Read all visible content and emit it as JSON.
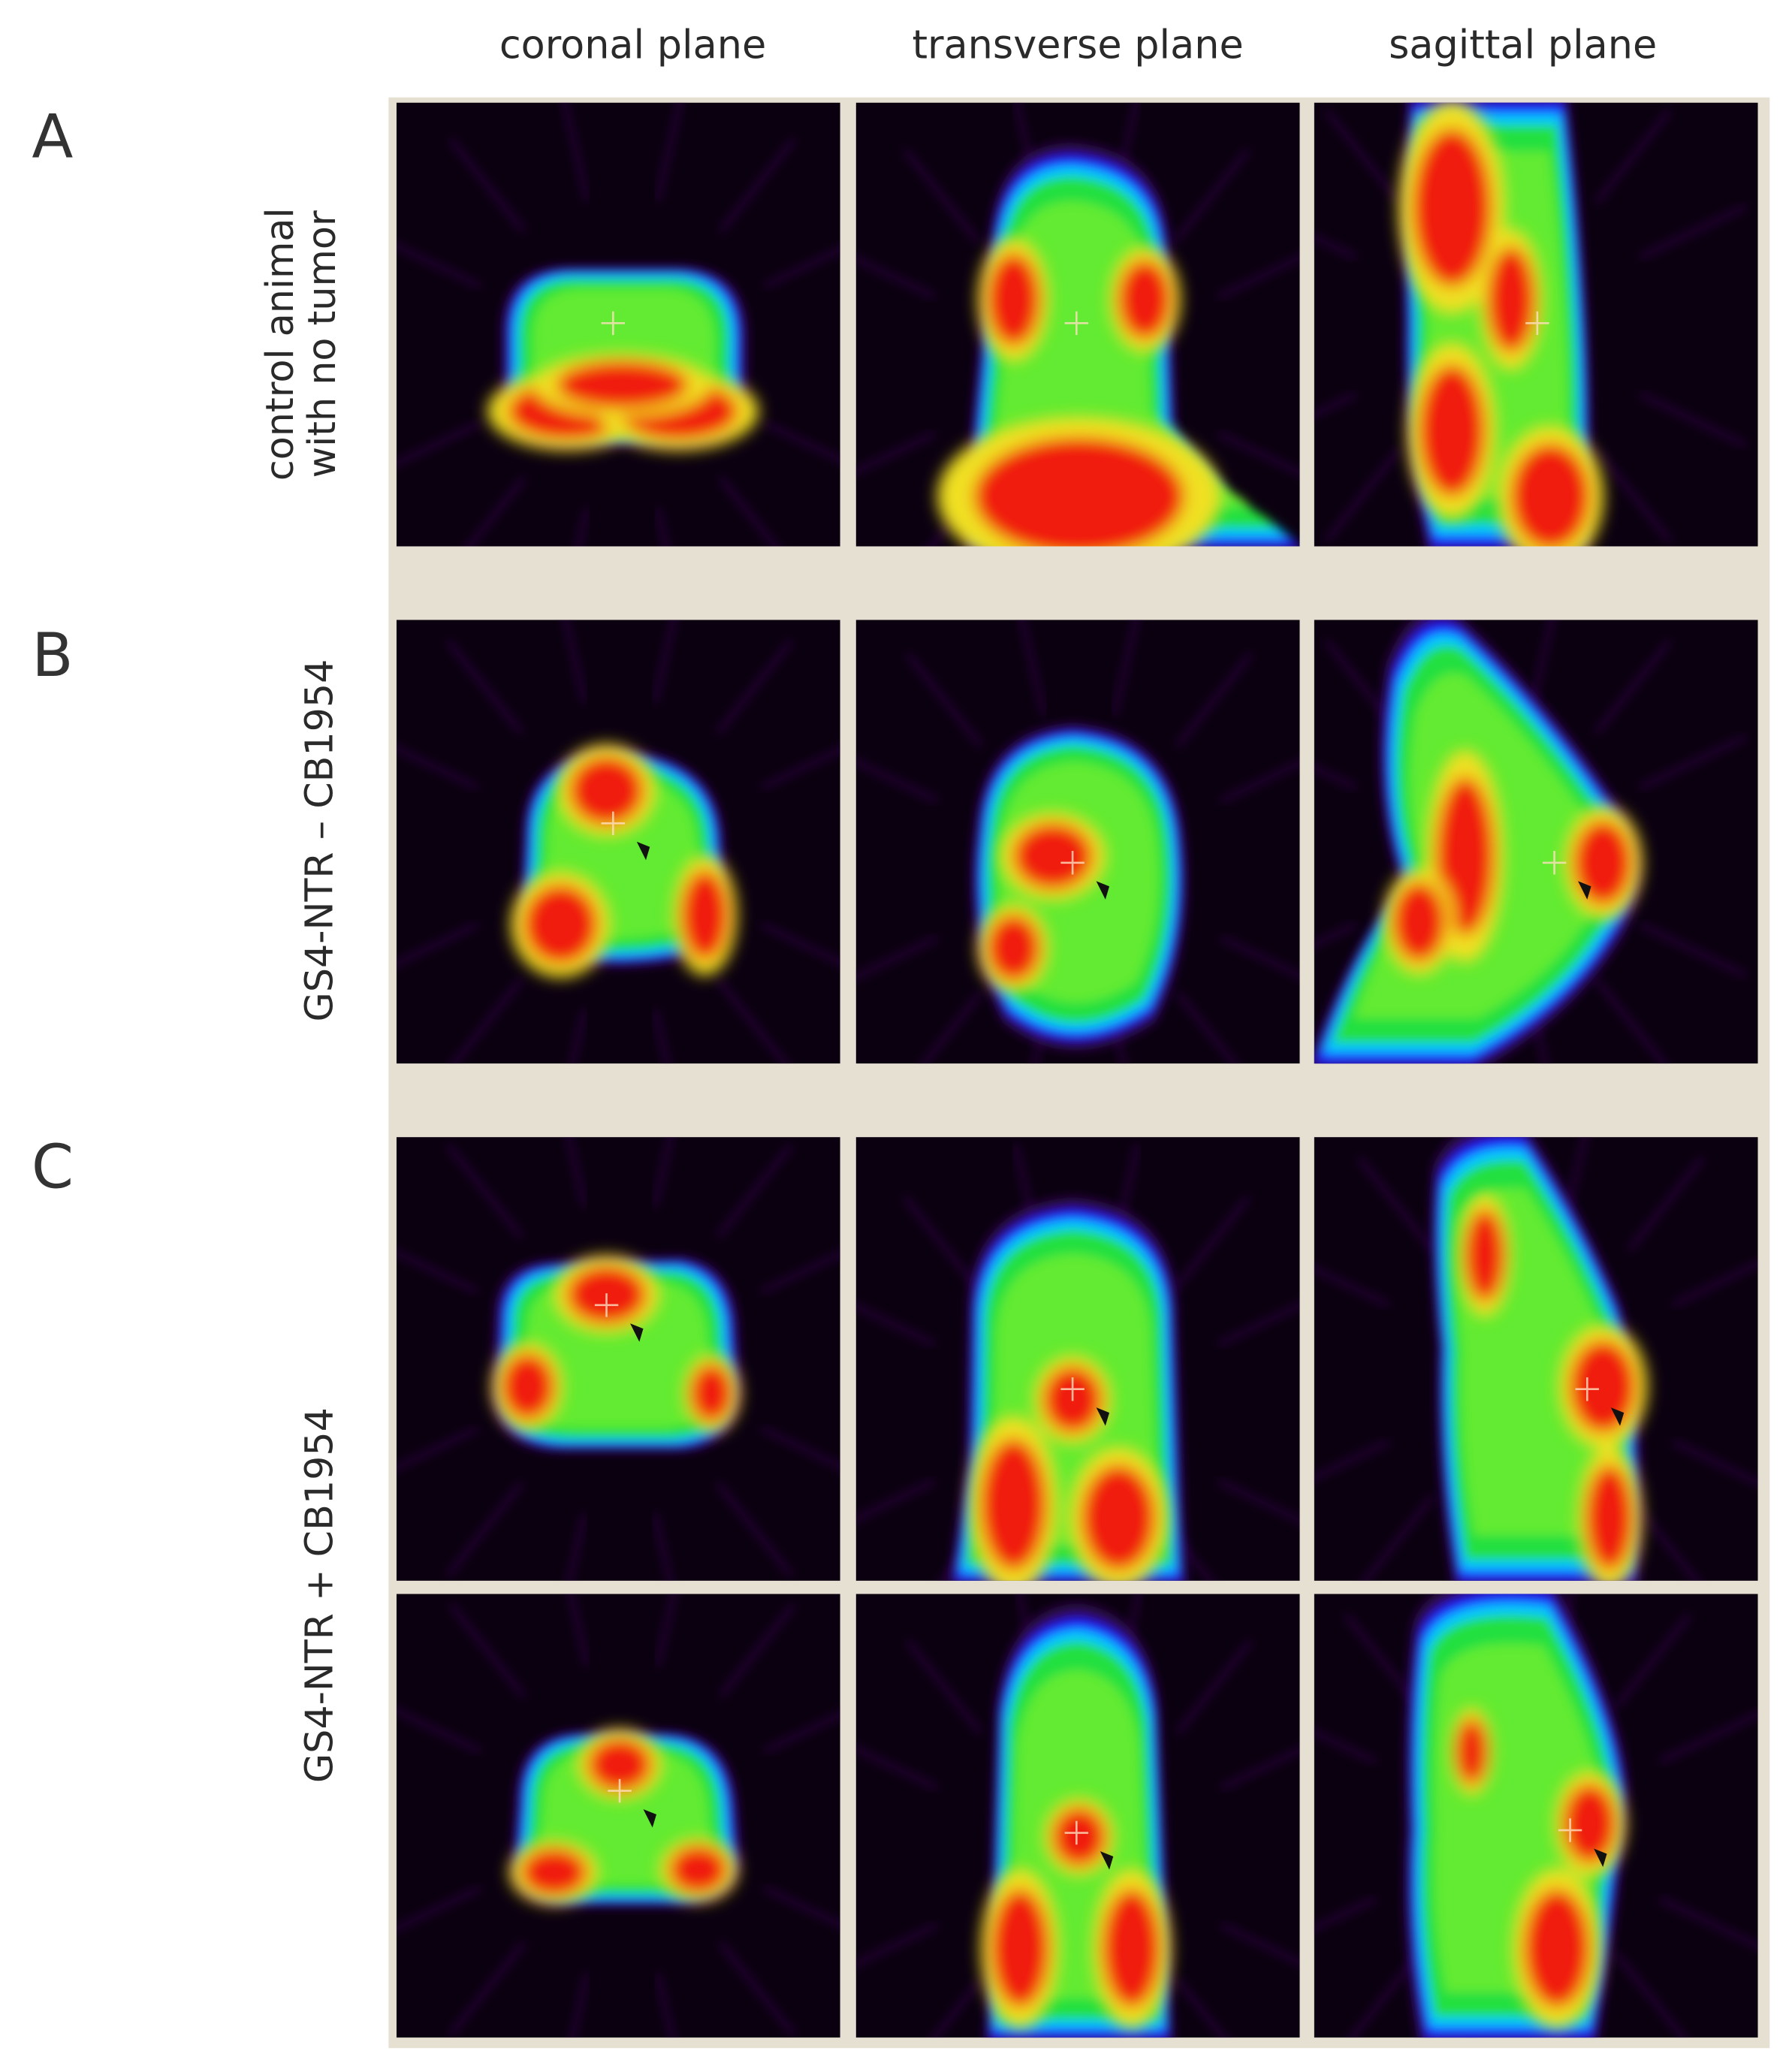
{
  "column_headers": [
    "coronal plane",
    "transverse plane",
    "sagittal plane"
  ],
  "rows": [
    {
      "letter": "A",
      "label": [
        "control animal",
        "with no tumor"
      ]
    },
    {
      "letter": "B",
      "label": [
        "GS4-NTR – CB1954"
      ]
    },
    {
      "letter": "C",
      "label": [
        "GS4-NTR + CB1954"
      ]
    }
  ]
}
